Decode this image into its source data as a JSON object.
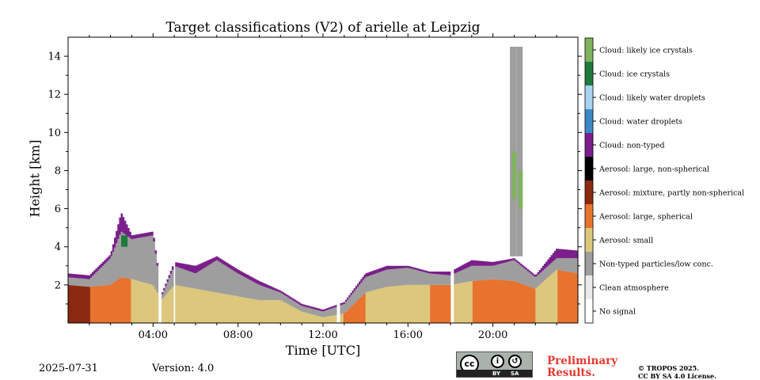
{
  "chart_data": {
    "type": "heatmap",
    "title": "Target classifications (V2) of arielle at Leipzig",
    "xlabel": "Time [UTC]",
    "ylabel": "Height [km]",
    "xlim_hours": [
      0,
      24
    ],
    "ylim": [
      0,
      15
    ],
    "xticks": [
      {
        "hour": 4,
        "label": "04:00"
      },
      {
        "hour": 8,
        "label": "08:00"
      },
      {
        "hour": 12,
        "label": "12:00"
      },
      {
        "hour": 16,
        "label": "16:00"
      },
      {
        "hour": 20,
        "label": "20:00"
      }
    ],
    "yticks": [
      {
        "value": 2,
        "label": "2"
      },
      {
        "value": 4,
        "label": "4"
      },
      {
        "value": 6,
        "label": "6"
      },
      {
        "value": 8,
        "label": "8"
      },
      {
        "value": 10,
        "label": "10"
      },
      {
        "value": 12,
        "label": "12"
      },
      {
        "value": 14,
        "label": "14"
      }
    ],
    "classes": [
      {
        "label": "No signal",
        "color": "#ffffff"
      },
      {
        "label": "Clean atmosphere",
        "color": "#eaeaea"
      },
      {
        "label": "Non-typed particles/low conc.",
        "color": "#9e9e9e"
      },
      {
        "label": "Aerosol: small",
        "color": "#dcc77c"
      },
      {
        "label": "Aerosol: large, spherical",
        "color": "#e8732f"
      },
      {
        "label": "Aerosol: mixture, partly non-spherical",
        "color": "#8b2a10"
      },
      {
        "label": "Aerosol: large, non-spherical",
        "color": "#000000"
      },
      {
        "label": "Cloud: non-typed",
        "color": "#7a1f8b"
      },
      {
        "label": "Cloud: water droplets",
        "color": "#3b8ac6"
      },
      {
        "label": "Cloud: likely water droplets",
        "color": "#a9d3f0"
      },
      {
        "label": "Cloud: ice crystals",
        "color": "#1f7a3b"
      },
      {
        "label": "Cloud: likely ice crystals",
        "color": "#7fb35e"
      }
    ],
    "profile": [
      {
        "h": 0.0,
        "aer_top": 2.0,
        "aer_cls": 5,
        "ntp_top": 2.4,
        "cloud_top": 2.6
      },
      {
        "h": 1.0,
        "aer_top": 1.9,
        "aer_cls": 4,
        "ntp_top": 2.3,
        "cloud_top": 2.5
      },
      {
        "h": 2.0,
        "aer_top": 2.0,
        "aer_cls": 4,
        "ntp_top": 3.4,
        "cloud_top": 3.6
      },
      {
        "h": 2.5,
        "aer_top": 2.4,
        "aer_cls": 4,
        "ntp_top": 4.8,
        "cloud_top": 5.8
      },
      {
        "h": 3.0,
        "aer_top": 2.3,
        "aer_cls": 3,
        "ntp_top": 4.4,
        "cloud_top": 4.6
      },
      {
        "h": 4.0,
        "aer_top": 2.0,
        "aer_cls": 3,
        "ntp_top": 4.6,
        "cloud_top": 4.8
      },
      {
        "h": 4.4,
        "aer_top": 1.2,
        "aer_cls": 3,
        "ntp_top": 1.4,
        "cloud_top": 1.5
      },
      {
        "h": 5.0,
        "aer_top": 2.0,
        "aer_cls": 3,
        "ntp_top": 3.0,
        "cloud_top": 3.2
      },
      {
        "h": 6.0,
        "aer_top": 1.8,
        "aer_cls": 3,
        "ntp_top": 2.6,
        "cloud_top": 3.0
      },
      {
        "h": 7.0,
        "aer_top": 1.6,
        "aer_cls": 3,
        "ntp_top": 3.3,
        "cloud_top": 3.5
      },
      {
        "h": 8.0,
        "aer_top": 1.4,
        "aer_cls": 3,
        "ntp_top": 2.6,
        "cloud_top": 2.8
      },
      {
        "h": 9.0,
        "aer_top": 1.2,
        "aer_cls": 3,
        "ntp_top": 2.0,
        "cloud_top": 2.2
      },
      {
        "h": 10.0,
        "aer_top": 1.2,
        "aer_cls": 3,
        "ntp_top": 1.6,
        "cloud_top": 1.7
      },
      {
        "h": 11.0,
        "aer_top": 0.6,
        "aer_cls": 3,
        "ntp_top": 0.9,
        "cloud_top": 1.0
      },
      {
        "h": 12.0,
        "aer_top": 0.3,
        "aer_cls": 3,
        "ntp_top": 0.6,
        "cloud_top": 0.7
      },
      {
        "h": 13.0,
        "aer_top": 0.5,
        "aer_cls": 4,
        "ntp_top": 1.0,
        "cloud_top": 1.1
      },
      {
        "h": 14.0,
        "aer_top": 1.6,
        "aer_cls": 3,
        "ntp_top": 2.4,
        "cloud_top": 2.6
      },
      {
        "h": 15.0,
        "aer_top": 1.9,
        "aer_cls": 3,
        "ntp_top": 2.8,
        "cloud_top": 3.0
      },
      {
        "h": 16.0,
        "aer_top": 2.0,
        "aer_cls": 3,
        "ntp_top": 2.9,
        "cloud_top": 3.0
      },
      {
        "h": 17.0,
        "aer_top": 2.0,
        "aer_cls": 4,
        "ntp_top": 2.6,
        "cloud_top": 2.7
      },
      {
        "h": 18.0,
        "aer_top": 2.0,
        "aer_cls": 3,
        "ntp_top": 2.5,
        "cloud_top": 2.7
      },
      {
        "h": 19.0,
        "aer_top": 2.2,
        "aer_cls": 4,
        "ntp_top": 3.0,
        "cloud_top": 3.3
      },
      {
        "h": 20.0,
        "aer_top": 2.3,
        "aer_cls": 4,
        "ntp_top": 3.0,
        "cloud_top": 3.2
      },
      {
        "h": 21.0,
        "aer_top": 2.2,
        "aer_cls": 4,
        "ntp_top": 3.3,
        "cloud_top": 3.4
      },
      {
        "h": 22.0,
        "aer_top": 1.8,
        "aer_cls": 3,
        "ntp_top": 2.4,
        "cloud_top": 2.5
      },
      {
        "h": 23.0,
        "aer_top": 2.8,
        "aer_cls": 4,
        "ntp_top": 3.4,
        "cloud_top": 3.9
      },
      {
        "h": 24.0,
        "aer_top": 2.6,
        "aer_cls": 4,
        "ntp_top": 3.4,
        "cloud_top": 3.8
      }
    ],
    "gaps_hours": [
      4.3,
      5.0,
      12.7,
      18.1
    ],
    "cirrus": [
      {
        "h0": 20.8,
        "h1": 21.1,
        "y0": 3.5,
        "y1": 14.5,
        "cls": 2
      },
      {
        "h0": 21.1,
        "h1": 21.4,
        "y0": 3.5,
        "y1": 14.5,
        "cls": 2
      },
      {
        "h0": 20.9,
        "h1": 21.1,
        "y0": 6.5,
        "y1": 9.0,
        "cls": 11
      },
      {
        "h0": 21.2,
        "h1": 21.4,
        "y0": 6.0,
        "y1": 8.0,
        "cls": 11
      },
      {
        "h0": 2.5,
        "h1": 2.8,
        "y0": 4.0,
        "y1": 4.6,
        "cls": 10
      }
    ]
  },
  "footer": {
    "date": "2025-07-31",
    "version": "Version: 4.0",
    "license_badge": [
      "cc",
      "BY",
      "SA"
    ],
    "preliminary": "Preliminary Results.",
    "copyright_line1": "© TROPOS 2025.",
    "copyright_line2": "CC BY SA 4.0 License."
  }
}
